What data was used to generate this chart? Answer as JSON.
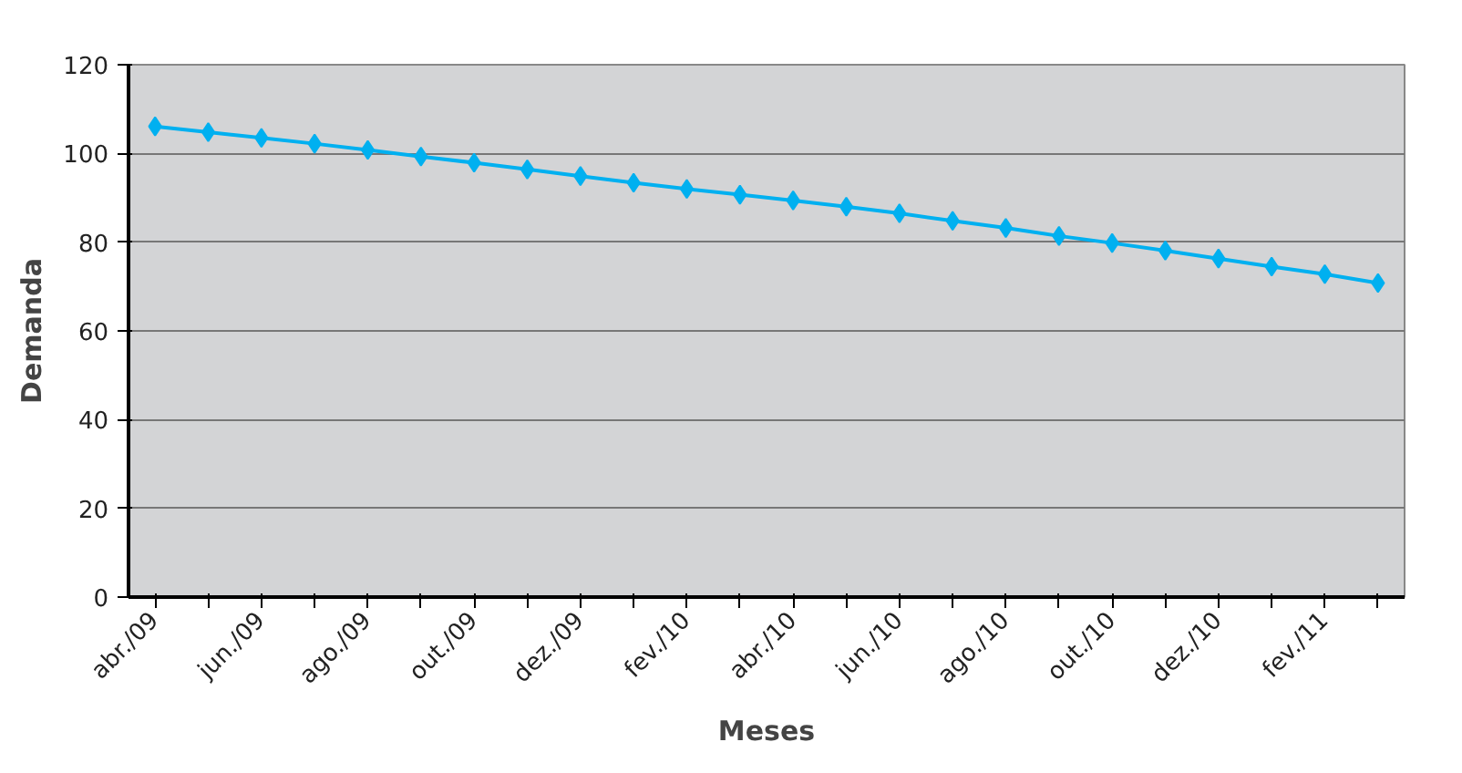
{
  "chart_data": {
    "type": "line",
    "xlabel": "Meses",
    "ylabel": "Demanda",
    "categories": [
      "abr./09",
      null,
      "jun./09",
      null,
      "ago./09",
      null,
      "out./09",
      null,
      "dez./09",
      null,
      "fev./10",
      null,
      "abr./10",
      null,
      "jun./10",
      null,
      "ago./10",
      null,
      "out./10",
      null,
      "dez./10",
      null,
      "fev./11",
      null
    ],
    "series": [
      {
        "color": "#00b0f0",
        "values": [
          106.1,
          104.8,
          103.5,
          102.2,
          100.8,
          99.3,
          97.9,
          96.4,
          94.9,
          93.4,
          92.0,
          90.7,
          89.4,
          88.0,
          86.5,
          84.8,
          83.2,
          81.4,
          79.8,
          78.1,
          76.3,
          74.5,
          72.8,
          70.8
        ]
      }
    ],
    "ylim": [
      0,
      120
    ],
    "yticks": [
      0,
      20,
      40,
      60,
      80,
      100,
      120
    ],
    "grid": "y",
    "marker": "diamond",
    "line_style": "solid"
  }
}
